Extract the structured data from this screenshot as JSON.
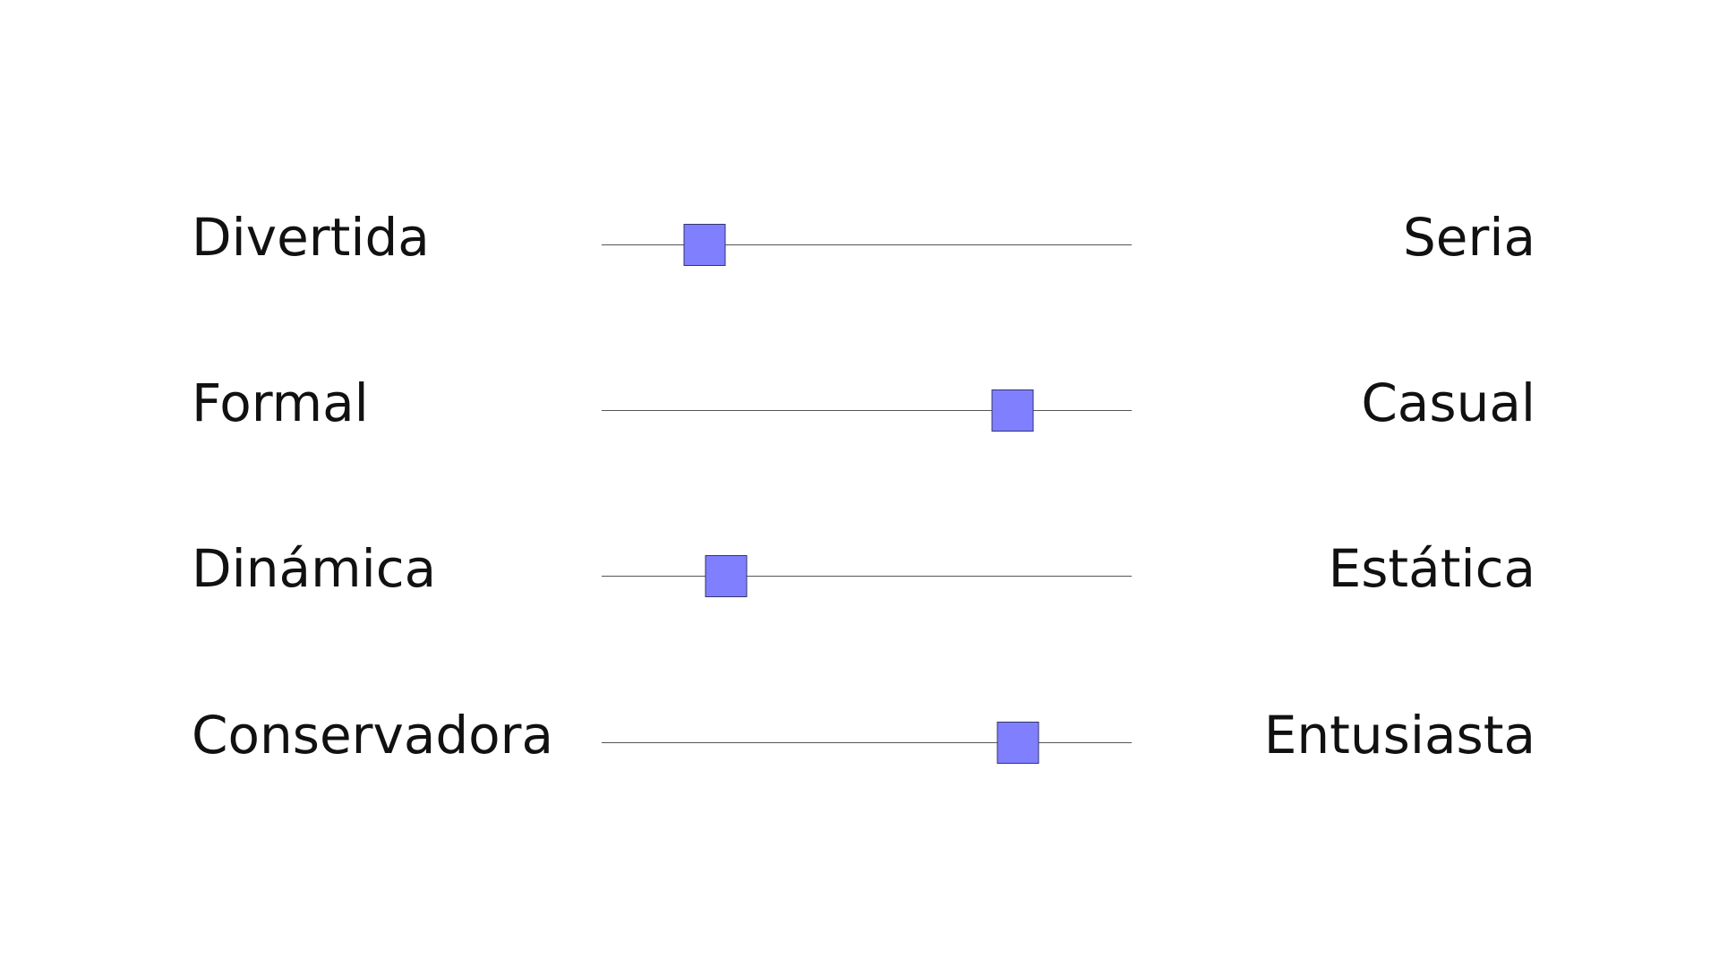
{
  "colors": {
    "background": "#ffffff",
    "text": "#111111",
    "track": "#555555",
    "thumb": "#8080ff",
    "thumb_border": "#34346a"
  },
  "scales": [
    {
      "left_label": "Divertida",
      "right_label": "Seria",
      "value": 0.195
    },
    {
      "left_label": "Formal",
      "right_label": "Casual",
      "value": 0.775
    },
    {
      "left_label": "Dinámica",
      "right_label": "Estática",
      "value": 0.235
    },
    {
      "left_label": "Conservadora",
      "right_label": "Entusiasta",
      "value": 0.785
    }
  ]
}
